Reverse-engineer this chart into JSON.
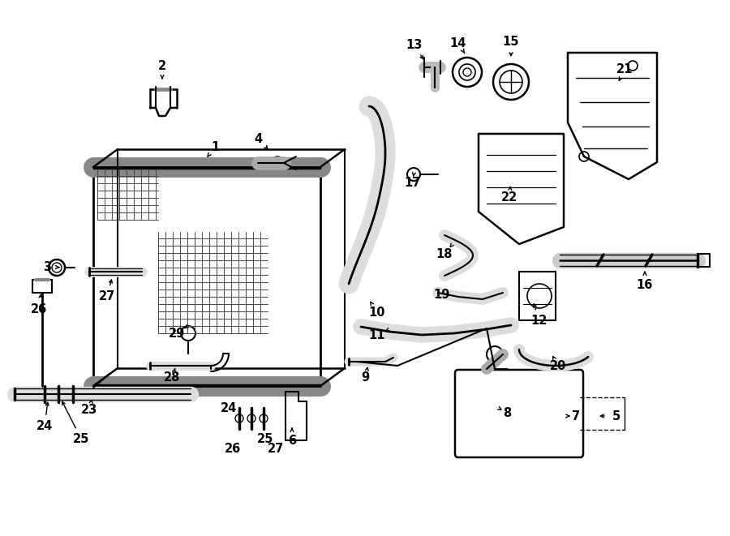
{
  "bg_color": "#ffffff",
  "line_color": "#000000",
  "label_fontsize": 10.5,
  "figsize": [
    9.0,
    6.61
  ],
  "dpi": 100,
  "xlim": [
    0,
    900
  ],
  "ylim": [
    0,
    661
  ]
}
